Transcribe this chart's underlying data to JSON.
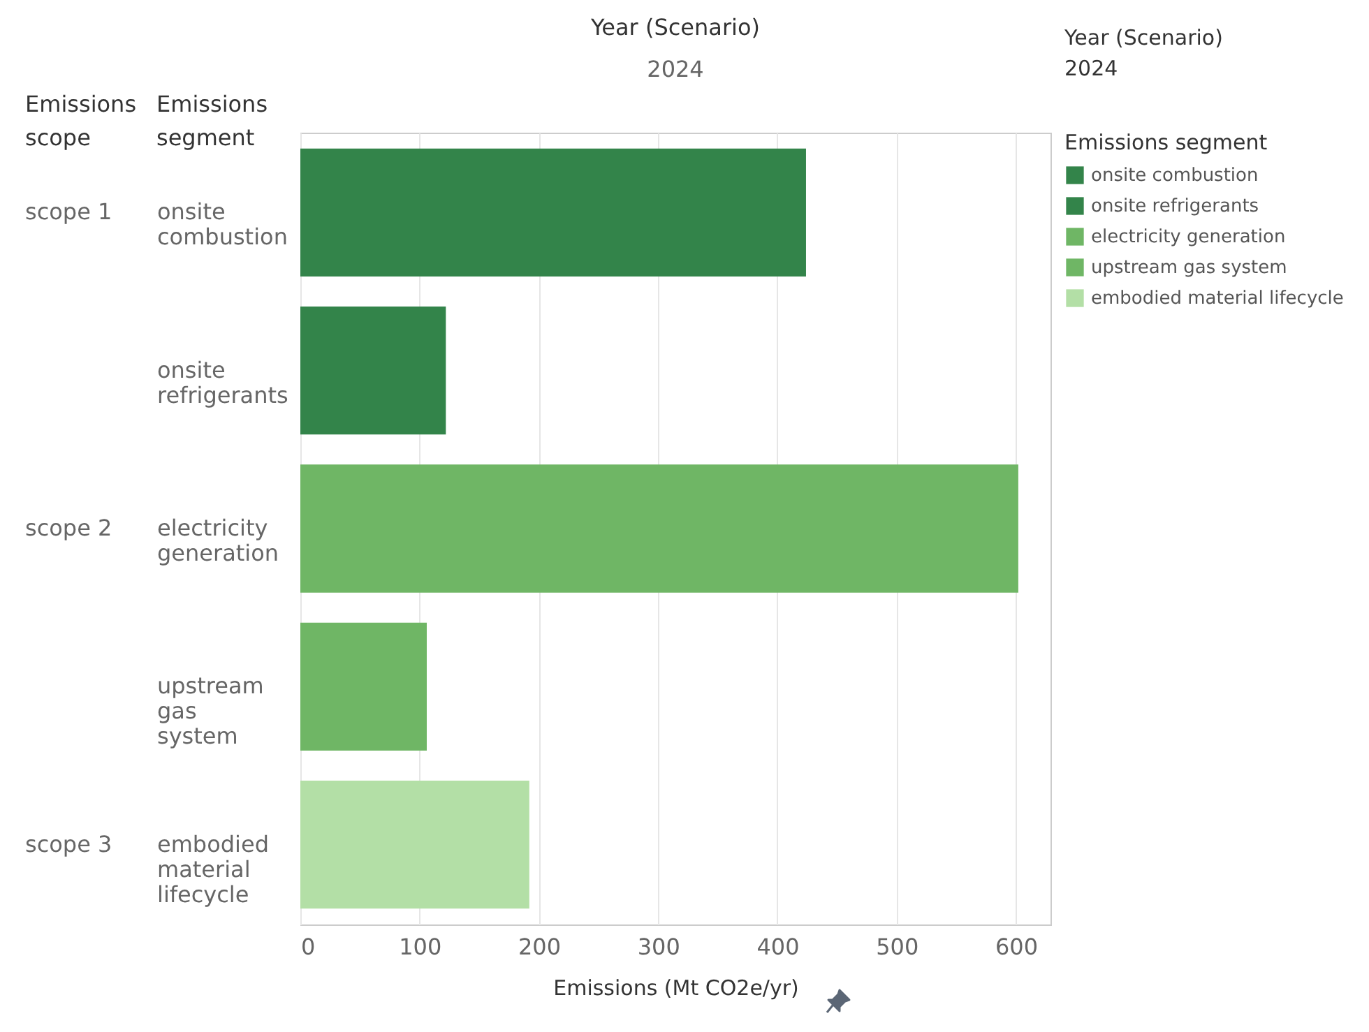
{
  "chart_data": {
    "type": "bar",
    "orientation": "horizontal",
    "title": "Year (Scenario)",
    "subtitle": "2024",
    "categories": [
      "onsite combustion",
      "onsite refrigerants",
      "electricity generation",
      "upstream gas system",
      "embodied material lifecycle"
    ],
    "series": [
      {
        "name": "onsite combustion",
        "color": "#33844a",
        "values": [
          424,
          null,
          null,
          null,
          null
        ]
      },
      {
        "name": "onsite refrigerants",
        "color": "#33844a",
        "values": [
          null,
          122,
          null,
          null,
          null
        ]
      },
      {
        "name": "electricity generation",
        "color": "#6fb665",
        "values": [
          null,
          null,
          602,
          null,
          null
        ]
      },
      {
        "name": "upstream gas system",
        "color": "#6fb665",
        "values": [
          null,
          null,
          null,
          106,
          null
        ]
      },
      {
        "name": "embodied material lifecycle",
        "color": "#b3dfa6",
        "values": [
          null,
          null,
          null,
          null,
          192
        ]
      }
    ],
    "xlim": [
      0,
      629
    ],
    "xticks": [
      0,
      100,
      200,
      300,
      400,
      500,
      600
    ],
    "xlabel": "Emissions (Mt CO2e/yr)",
    "ylabel": "Emissions segment",
    "legend_title": "Emissions segment",
    "legend": "right",
    "grid": "x",
    "annotations": [
      "scope 1",
      "scope 2",
      "scope 3",
      "Emissions scope",
      "Year (Scenario)",
      "2024"
    ]
  }
}
